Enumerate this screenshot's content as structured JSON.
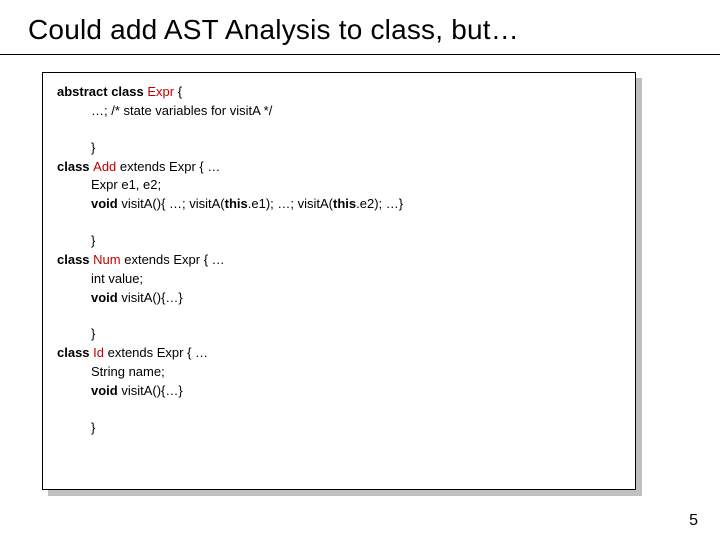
{
  "slide": {
    "title": "Could add AST Analysis to class, but…",
    "page_number": "5",
    "colors": {
      "background": "#ffffff",
      "text": "#000000",
      "class_name": "#c00000",
      "shadow": "#c0c0c0",
      "border": "#000000"
    },
    "typography": {
      "title_font": "Verdana",
      "title_size_pt": 28,
      "code_font": "Verdana",
      "code_size_pt": 13
    },
    "code": {
      "kw_abstract_class": "abstract class ",
      "cls_expr": "Expr",
      "brace_open": " {",
      "expr_body": "…; /* state variables for visitA */",
      "close_brace": "}",
      "kw_class": "class ",
      "cls_add": "Add",
      "extends_expr": " extends Expr { …",
      "add_fields": "Expr e1, e2;",
      "kw_void": "void",
      "add_method_a": " visitA(){ …; visitA(",
      "kw_this1": "this",
      "add_method_b": ".e1); …; visitA(",
      "kw_this2": "this",
      "add_method_c": ".e2); …}",
      "cls_num": "Num",
      "num_fields": "int value;",
      "num_method": " visitA(){…}",
      "cls_id": "Id",
      "id_fields": "String name;",
      "id_method_prefix": "void ",
      "id_method": "visitA(){…}"
    }
  }
}
